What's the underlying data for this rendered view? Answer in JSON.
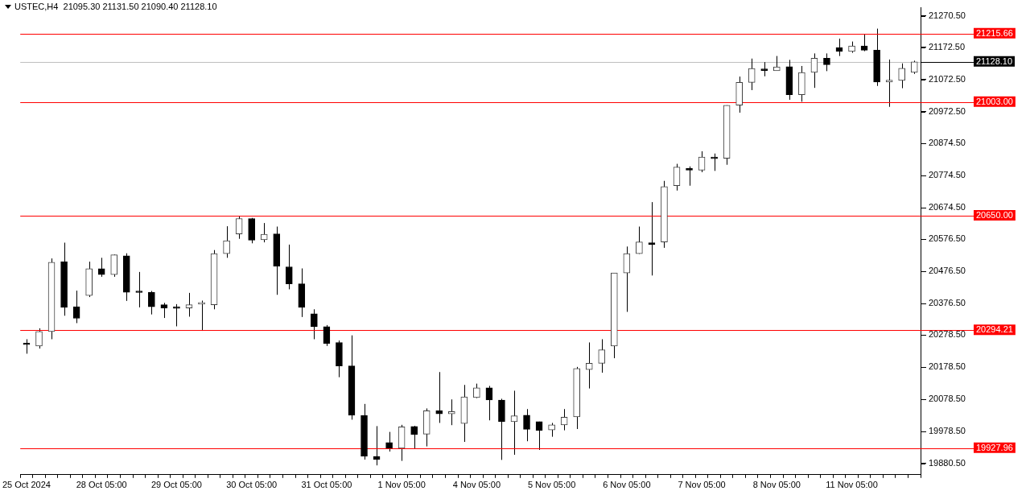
{
  "chart_data": {
    "type": "candlestick",
    "title": "USTEC,H4  21095.30 21131.50 21090.40 21128.10",
    "categories": [
      "25 Oct 2024",
      null,
      null,
      null,
      null,
      null,
      "28 Oct 05:00",
      null,
      null,
      null,
      null,
      null,
      "29 Oct 05:00",
      null,
      null,
      null,
      null,
      null,
      "30 Oct 05:00",
      null,
      null,
      null,
      null,
      null,
      "31 Oct 05:00",
      null,
      null,
      null,
      null,
      null,
      "1 Nov 05:00",
      null,
      null,
      null,
      null,
      null,
      "4 Nov 05:00",
      null,
      null,
      null,
      null,
      null,
      "5 Nov 05:00",
      null,
      null,
      null,
      null,
      null,
      "6 Nov 05:00",
      null,
      null,
      null,
      null,
      null,
      "7 Nov 05:00",
      null,
      null,
      null,
      null,
      null,
      "8 Nov 05:00",
      null,
      null,
      null,
      null,
      null,
      "11 Nov 05:00",
      null,
      null,
      null,
      null,
      null
    ],
    "ohlc": [
      [
        20250,
        20266,
        20221,
        20249
      ],
      [
        20245,
        20300,
        20237,
        20290
      ],
      [
        20290,
        20517,
        20266,
        20505
      ],
      [
        20507,
        20566,
        20339,
        20365
      ],
      [
        20367,
        20417,
        20316,
        20331
      ],
      [
        20402,
        20507,
        20397,
        20485
      ],
      [
        20485,
        20519,
        20460,
        20467
      ],
      [
        20467,
        20529,
        20460,
        20528
      ],
      [
        20525,
        20533,
        20385,
        20412
      ],
      [
        20412,
        20475,
        20365,
        20411
      ],
      [
        20412,
        20416,
        20343,
        20367
      ],
      [
        20373,
        20379,
        20332,
        20363
      ],
      [
        20363,
        20375,
        20306,
        20362
      ],
      [
        20363,
        20410,
        20336,
        20373
      ],
      [
        20375,
        20386,
        20292,
        20376
      ],
      [
        20373,
        20543,
        20359,
        20532
      ],
      [
        20532,
        20617,
        20519,
        20572
      ],
      [
        20593,
        20649,
        20578,
        20641
      ],
      [
        20641,
        20643,
        20564,
        20574
      ],
      [
        20575,
        20627,
        20567,
        20592
      ],
      [
        20593,
        20616,
        20404,
        20493
      ],
      [
        20491,
        20560,
        20421,
        20438
      ],
      [
        20438,
        20486,
        20335,
        20365
      ],
      [
        20345,
        20359,
        20266,
        20305
      ],
      [
        20305,
        20310,
        20245,
        20253
      ],
      [
        20256,
        20262,
        20148,
        20183
      ],
      [
        20183,
        20278,
        20016,
        20030
      ],
      [
        20029,
        20065,
        19892,
        19902
      ],
      [
        19902,
        19996,
        19874,
        19892
      ],
      [
        19945,
        19978,
        19917,
        19927
      ],
      [
        19927,
        20000,
        19888,
        19994
      ],
      [
        19995,
        19997,
        19926,
        19970
      ],
      [
        19971,
        20051,
        19933,
        20044
      ],
      [
        20044,
        20164,
        20006,
        20034
      ],
      [
        20034,
        20079,
        19999,
        20041
      ],
      [
        20004,
        20124,
        19947,
        20087
      ],
      [
        20085,
        20128,
        20083,
        20115
      ],
      [
        20115,
        20121,
        20014,
        20077
      ],
      [
        20077,
        20081,
        19891,
        20010
      ],
      [
        20010,
        20106,
        19907,
        20028
      ],
      [
        20030,
        20049,
        19949,
        19986
      ],
      [
        20010,
        20010,
        19922,
        19983
      ],
      [
        19984,
        20006,
        19963,
        20000
      ],
      [
        20000,
        20049,
        19983,
        20024
      ],
      [
        20025,
        20180,
        19987,
        20175
      ],
      [
        20172,
        20256,
        20113,
        20191
      ],
      [
        20191,
        20266,
        20162,
        20233
      ],
      [
        20245,
        20472,
        20207,
        20472
      ],
      [
        20472,
        20554,
        20351,
        20532
      ],
      [
        20532,
        20616,
        20531,
        20568
      ],
      [
        20566,
        20692,
        20464,
        20560
      ],
      [
        20568,
        20758,
        20550,
        20740
      ],
      [
        20743,
        20811,
        20728,
        20801
      ],
      [
        20797,
        20803,
        20743,
        20791
      ],
      [
        20791,
        20850,
        20785,
        20832
      ],
      [
        20832,
        20843,
        20789,
        20827
      ],
      [
        20828,
        20993,
        20808,
        20993
      ],
      [
        20993,
        21082,
        20970,
        21064
      ],
      [
        21064,
        21138,
        21040,
        21107
      ],
      [
        21104,
        21127,
        21083,
        21101
      ],
      [
        21100,
        21146,
        21100,
        21112
      ],
      [
        21113,
        21134,
        21010,
        21026
      ],
      [
        21026,
        21115,
        21004,
        21095
      ],
      [
        21095,
        21154,
        21047,
        21139
      ],
      [
        21139,
        21154,
        21099,
        21119
      ],
      [
        21172,
        21200,
        21146,
        21160
      ],
      [
        21160,
        21191,
        21156,
        21177
      ],
      [
        21177,
        21215,
        21161,
        21164
      ],
      [
        21164,
        21231,
        21053,
        21065
      ],
      [
        21065,
        21135,
        20988,
        21071
      ],
      [
        21070,
        21123,
        21046,
        21108
      ],
      [
        21095.3,
        21131.5,
        21090.4,
        21128.1
      ]
    ],
    "ylim": [
      19845,
      21296
    ],
    "yticks": [
      {
        "value": 21270.5,
        "label": "21270.50"
      },
      {
        "value": 21172.5,
        "label": "21172.50"
      },
      {
        "value": 21072.5,
        "label": "21072.50"
      },
      {
        "value": 20972.5,
        "label": "20972.50"
      },
      {
        "value": 20874.5,
        "label": "20874.50"
      },
      {
        "value": 20774.5,
        "label": "20774.50"
      },
      {
        "value": 20674.5,
        "label": "20674.50"
      },
      {
        "value": 20576.5,
        "label": "20576.50"
      },
      {
        "value": 20476.5,
        "label": "20476.50"
      },
      {
        "value": 20376.5,
        "label": "20376.50"
      },
      {
        "value": 20278.5,
        "label": "20278.50"
      },
      {
        "value": 20178.5,
        "label": "20178.50"
      },
      {
        "value": 20078.5,
        "label": "20078.50"
      },
      {
        "value": 19978.5,
        "label": "19978.50"
      },
      {
        "value": 19880.5,
        "label": "19880.50"
      }
    ],
    "ref_lines": [
      {
        "axis": "y",
        "value": 21215.66,
        "label": "21215.66",
        "color": "#ff0000"
      },
      {
        "axis": "y",
        "value": 21128.1,
        "label": "21128.10",
        "color": "#000000"
      },
      {
        "axis": "y",
        "value": 21003,
        "label": "21003.00",
        "color": "#ff0000"
      },
      {
        "axis": "y",
        "value": 20650,
        "label": "20650.00",
        "color": "#ff0000"
      },
      {
        "axis": "y",
        "value": 20294.21,
        "label": "20294.21",
        "color": "#ff0000"
      },
      {
        "axis": "y",
        "value": 19927.96,
        "label": "19927.96",
        "color": "#ff0000"
      }
    ],
    "grid": false,
    "legend": false
  }
}
